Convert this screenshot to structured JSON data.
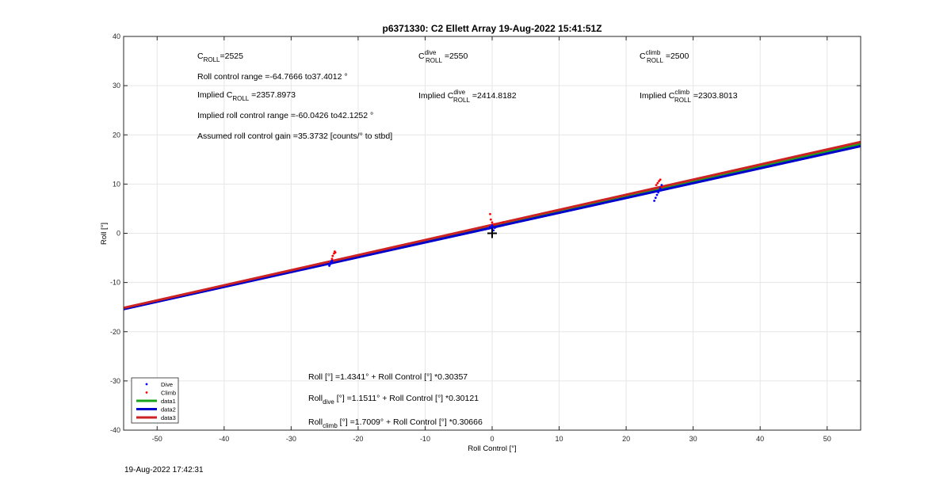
{
  "chart_data": {
    "type": "scatter",
    "title": "p6371330: C2 Ellett Array 19-Aug-2022 15:41:51Z",
    "xlabel": "Roll Control [°]",
    "ylabel": "Roll [°]",
    "xlim": [
      -55,
      55
    ],
    "ylim": [
      -40,
      40
    ],
    "xticks": [
      -50,
      -40,
      -30,
      -20,
      -10,
      0,
      10,
      20,
      30,
      40,
      50
    ],
    "yticks": [
      -40,
      -30,
      -20,
      -10,
      0,
      10,
      20,
      30,
      40
    ],
    "grid": true,
    "legend_position": "bottom-left",
    "legend": [
      {
        "label": "Dive",
        "kind": "marker",
        "color": "#0000ff"
      },
      {
        "label": "Climb",
        "kind": "marker",
        "color": "#ff0000"
      },
      {
        "label": "data1",
        "kind": "line",
        "color": "#1aa31a"
      },
      {
        "label": "data2",
        "kind": "line",
        "color": "#0000cc"
      },
      {
        "label": "data3",
        "kind": "line",
        "color": "#cc2222"
      }
    ],
    "lines": [
      {
        "name": "data1",
        "intercept": 1.4341,
        "slope": 0.30357,
        "color": "#1aa31a"
      },
      {
        "name": "data2",
        "intercept": 1.1511,
        "slope": 0.30121,
        "color": "#0000cc"
      },
      {
        "name": "data3",
        "intercept": 1.7009,
        "slope": 0.30666,
        "color": "#cc2222"
      }
    ],
    "series": [
      {
        "name": "Dive",
        "color": "#0000ff",
        "points": [
          [
            -24.3,
            -6.6
          ],
          [
            -24.2,
            -6.3
          ],
          [
            -24.1,
            -6.0
          ],
          [
            -24.0,
            -5.8
          ],
          [
            -23.9,
            -5.6
          ],
          [
            -0.6,
            1.0
          ],
          [
            -0.3,
            1.3
          ],
          [
            0.0,
            1.6
          ],
          [
            0.2,
            0.6
          ],
          [
            0.4,
            1.1
          ],
          [
            24.2,
            6.6
          ],
          [
            24.4,
            7.2
          ],
          [
            24.6,
            7.8
          ],
          [
            24.8,
            8.3
          ],
          [
            25.0,
            8.8
          ],
          [
            25.1,
            9.2
          ],
          [
            25.3,
            9.8
          ]
        ]
      },
      {
        "name": "Climb",
        "color": "#ff0000",
        "points": [
          [
            -23.9,
            -5.2
          ],
          [
            -23.8,
            -4.6
          ],
          [
            -23.6,
            -4.1
          ],
          [
            -23.5,
            -3.7
          ],
          [
            -23.4,
            -3.9
          ],
          [
            -0.3,
            3.9
          ],
          [
            -0.2,
            2.8
          ],
          [
            0.0,
            2.2
          ],
          [
            0.3,
            1.8
          ],
          [
            1.6,
            2.2
          ],
          [
            24.5,
            9.8
          ],
          [
            24.7,
            10.2
          ],
          [
            24.9,
            10.6
          ],
          [
            25.1,
            10.9
          ],
          [
            25.3,
            9.4
          ]
        ]
      }
    ],
    "marker": {
      "x": 0,
      "y": 0,
      "symbol": "+"
    }
  },
  "annotations": {
    "c_roll": {
      "base": "C",
      "sub": "ROLL",
      "value": "=2525"
    },
    "c_roll_dive": {
      "base": "C",
      "sup": "dive",
      "sub": "ROLL",
      "value": " =2550"
    },
    "c_roll_climb": {
      "base": "C",
      "sup": "climb",
      "sub": "ROLL",
      "value": " =2500"
    },
    "roll_control_range": "Roll control range =-64.7666 to37.4012 °",
    "implied_c_roll": {
      "prefix": "Implied C",
      "sub": "ROLL",
      "value": " =2357.8973"
    },
    "implied_c_roll_dive": {
      "prefix": "Implied C",
      "sup": "dive",
      "sub": "ROLL",
      "value": " =2414.8182"
    },
    "implied_c_roll_climb": {
      "prefix": "Implied C",
      "sup": "climb",
      "sub": "ROLL",
      "value": " =2303.8013"
    },
    "implied_roll_control_range": "Implied roll control range =-60.0426 to42.1252 °",
    "assumed_gain": "Assumed roll control gain =35.3732 [counts/° to stbd]",
    "fit_all": "Roll [°] =1.4341° + Roll Control [°] *0.30357",
    "fit_dive": {
      "prefix": "Roll",
      "sub": "dive",
      "rest": " [°] =1.1511° + Roll Control [°] *0.30121"
    },
    "fit_climb": {
      "prefix": "Roll",
      "sub": "climb",
      "rest": " [°] =1.7009° + Roll Control [°] *0.30666"
    }
  },
  "footer_timestamp": "19-Aug-2022 17:42:31"
}
